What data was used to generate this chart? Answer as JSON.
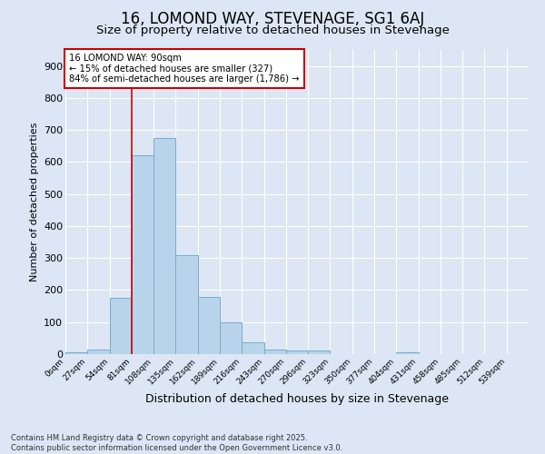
{
  "title": "16, LOMOND WAY, STEVENAGE, SG1 6AJ",
  "subtitle": "Size of property relative to detached houses in Stevenage",
  "xlabel": "Distribution of detached houses by size in Stevenage",
  "ylabel": "Number of detached properties",
  "bin_labels": [
    "0sqm",
    "27sqm",
    "54sqm",
    "81sqm",
    "108sqm",
    "135sqm",
    "162sqm",
    "189sqm",
    "216sqm",
    "243sqm",
    "270sqm",
    "296sqm",
    "323sqm",
    "350sqm",
    "377sqm",
    "404sqm",
    "431sqm",
    "458sqm",
    "485sqm",
    "512sqm",
    "539sqm"
  ],
  "bar_values": [
    7,
    13,
    175,
    620,
    675,
    310,
    178,
    100,
    38,
    15,
    12,
    10,
    0,
    0,
    0,
    5,
    0,
    0,
    0,
    0,
    0
  ],
  "bar_color": "#b8d4ea",
  "bar_edge_color": "#7aaac8",
  "vline_x": 3.0,
  "annotation_line1": "16 LOMOND WAY: 90sqm",
  "annotation_line2": "← 15% of detached houses are smaller (327)",
  "annotation_line3": "84% of semi-detached houses are larger (1,786) →",
  "annotation_box_color": "#ffffff",
  "annotation_box_edge_color": "#cc0000",
  "vline_color": "#cc0000",
  "ylim": [
    0,
    950
  ],
  "yticks": [
    0,
    100,
    200,
    300,
    400,
    500,
    600,
    700,
    800,
    900
  ],
  "background_color": "#dce6f5",
  "grid_color": "#ffffff",
  "footer_line1": "Contains HM Land Registry data © Crown copyright and database right 2025.",
  "footer_line2": "Contains public sector information licensed under the Open Government Licence v3.0.",
  "title_fontsize": 12,
  "subtitle_fontsize": 9.5,
  "ylabel_fontsize": 8,
  "xlabel_fontsize": 9
}
